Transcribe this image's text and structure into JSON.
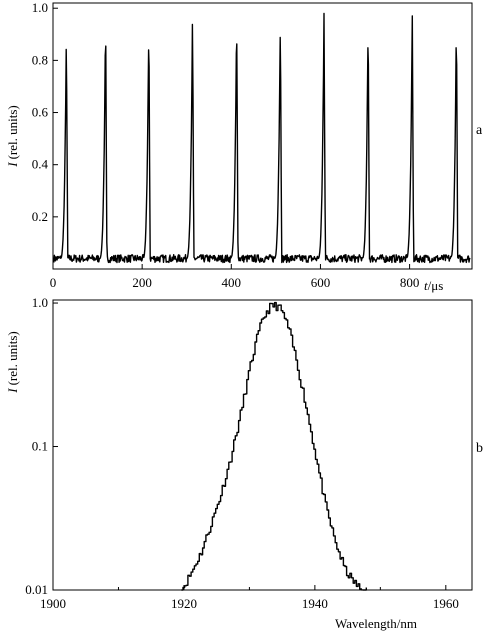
{
  "chart_data": [
    {
      "type": "line",
      "panel_label": "a",
      "ylabel_var": "I",
      "ylabel_unit": "(rel. units)",
      "xlabel_var": "t",
      "xlabel_unit": "/μs",
      "xlim": [
        0,
        940
      ],
      "ylim": [
        0,
        1.02
      ],
      "xticks": [
        0,
        200,
        400,
        600,
        800
      ],
      "yticks": [
        0.2,
        0.4,
        0.6,
        0.8,
        1.0
      ],
      "xtick_labels": [
        "0",
        "200",
        "400",
        "600",
        "800"
      ],
      "ytick_labels": [
        "0.2",
        "0.4",
        "0.6",
        "0.8",
        "1.0"
      ],
      "baseline": 0.04,
      "pulses": [
        {
          "t": 30,
          "peak": 0.92
        },
        {
          "t": 118,
          "peak": 0.98
        },
        {
          "t": 215,
          "peak": 0.96
        },
        {
          "t": 313,
          "peak": 0.98
        },
        {
          "t": 412,
          "peak": 0.99
        },
        {
          "t": 510,
          "peak": 0.97
        },
        {
          "t": 608,
          "peak": 0.98
        },
        {
          "t": 707,
          "peak": 0.97
        },
        {
          "t": 806,
          "peak": 0.97
        },
        {
          "t": 905,
          "peak": 0.97
        }
      ],
      "grid": false
    },
    {
      "type": "line",
      "panel_label": "b",
      "ylabel_var": "I",
      "ylabel_unit": "(rel. units)",
      "xlabel": "Wavelength/nm",
      "yscale": "log",
      "xlim": [
        1900,
        1964
      ],
      "ylim": [
        0.01,
        1.05
      ],
      "xticks": [
        1900,
        1920,
        1940,
        1960
      ],
      "yticks": [
        0.01,
        0.1,
        1.0
      ],
      "xtick_labels": [
        "1900",
        "1920",
        "1940",
        "1960"
      ],
      "ytick_labels": [
        "0.01",
        "0.1",
        "1.0"
      ],
      "x": [
        1919.6,
        1921,
        1922.5,
        1924,
        1925.5,
        1927,
        1928.5,
        1930,
        1931,
        1932,
        1933,
        1933.6,
        1934.3,
        1935,
        1936,
        1937,
        1938.5,
        1940,
        1941.5,
        1943,
        1944.5,
        1945.5,
        1946.2,
        1947,
        1948
      ],
      "y": [
        0.01,
        0.013,
        0.018,
        0.028,
        0.045,
        0.08,
        0.16,
        0.35,
        0.55,
        0.78,
        0.93,
        0.96,
        0.95,
        0.86,
        0.65,
        0.42,
        0.2,
        0.09,
        0.04,
        0.022,
        0.014,
        0.012,
        0.011,
        0.01,
        0.01
      ],
      "grid": false
    }
  ]
}
